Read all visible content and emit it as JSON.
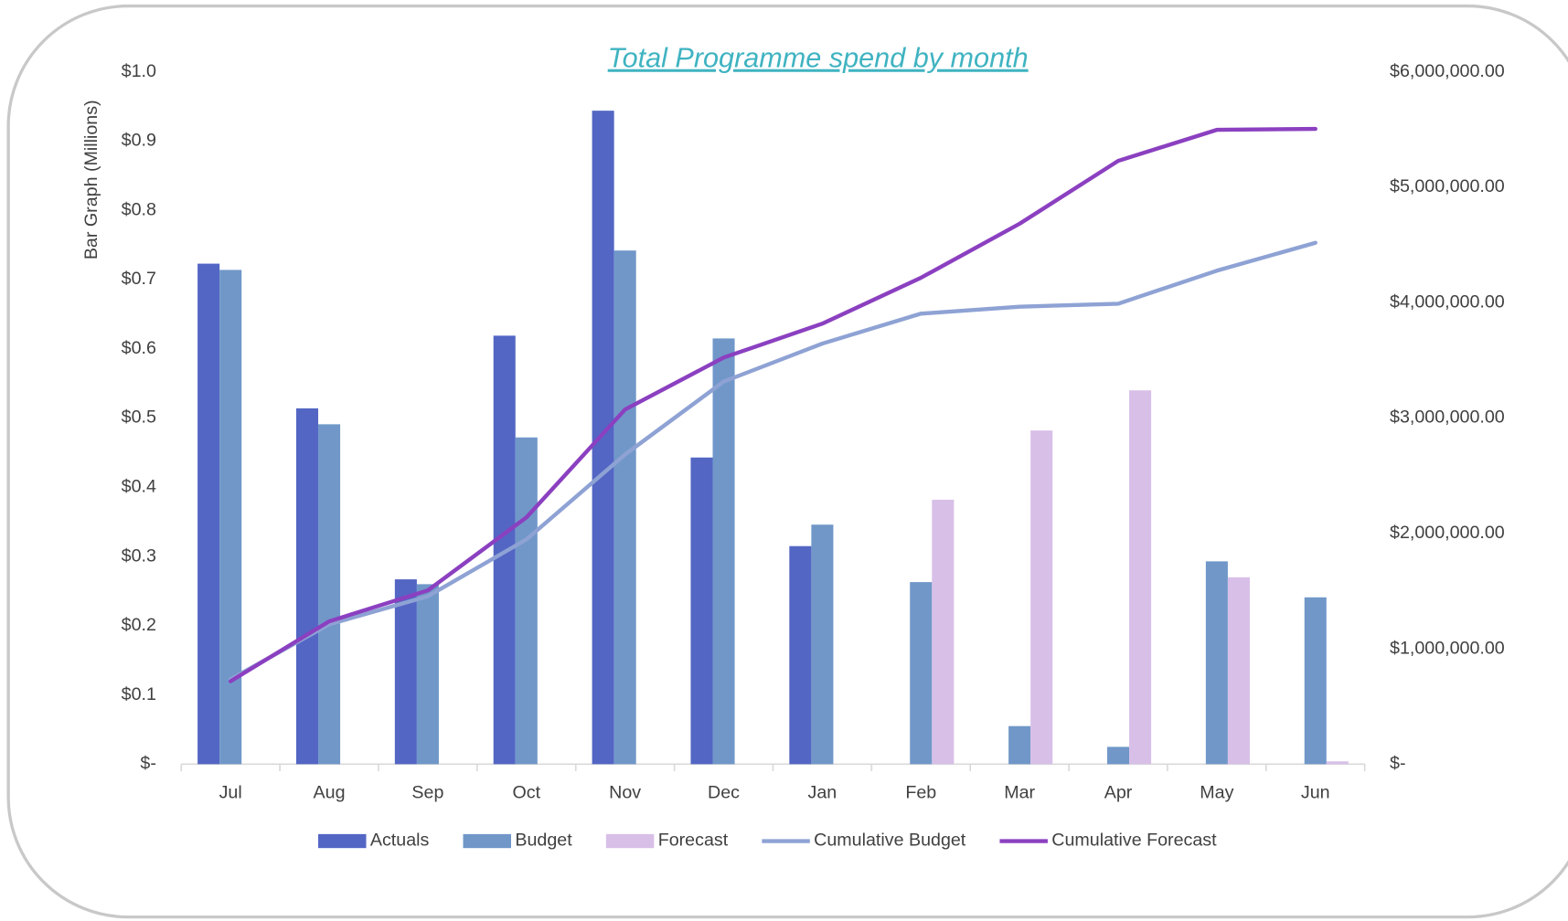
{
  "chart_data": {
    "type": "bar",
    "title": "Total Programme spend by month",
    "y_label": "Bar Graph (Millions)",
    "categories": [
      "Jul",
      "Aug",
      "Sep",
      "Oct",
      "Nov",
      "Dec",
      "Jan",
      "Feb",
      "Mar",
      "Apr",
      "May",
      "Jun"
    ],
    "series": [
      {
        "name": "Actuals",
        "type": "bar",
        "color": "#5366c4",
        "values": [
          0.723,
          0.514,
          0.267,
          0.619,
          0.944,
          0.443,
          0.315,
          null,
          null,
          null,
          null,
          null
        ]
      },
      {
        "name": "Budget",
        "type": "bar",
        "color": "#7097c8",
        "values": [
          0.714,
          0.491,
          0.26,
          0.472,
          0.742,
          0.615,
          0.346,
          0.263,
          0.055,
          0.025,
          0.293,
          0.241
        ]
      },
      {
        "name": "Forecast",
        "type": "bar",
        "color": "#d8bfe8",
        "values": [
          null,
          null,
          null,
          null,
          null,
          null,
          null,
          0.382,
          0.482,
          0.54,
          0.27,
          0.004
        ]
      },
      {
        "name": "Cumulative Budget",
        "type": "line",
        "axis": "y2",
        "color": "#8ea2d4",
        "values": [
          736000,
          1212000,
          1455000,
          1948000,
          2684000,
          3316000,
          3645000,
          3905000,
          3965000,
          3991000,
          4277000,
          4519000
        ]
      },
      {
        "name": "Cumulative Forecast",
        "type": "line",
        "axis": "y2",
        "color": "#8b40c0",
        "values": [
          719000,
          1238000,
          1506000,
          2139000,
          3074000,
          3524000,
          3818000,
          4216000,
          4684000,
          5229000,
          5498000,
          5506000
        ]
      }
    ],
    "ylim": [
      0,
      1.0
    ],
    "yticks": [
      {
        "value": 0,
        "label": "$-"
      },
      {
        "value": 0.1,
        "label": "$0.1"
      },
      {
        "value": 0.2,
        "label": "$0.2"
      },
      {
        "value": 0.3,
        "label": "$0.3"
      },
      {
        "value": 0.4,
        "label": "$0.4"
      },
      {
        "value": 0.5,
        "label": "$0.5"
      },
      {
        "value": 0.6,
        "label": "$0.6"
      },
      {
        "value": 0.7,
        "label": "$0.7"
      },
      {
        "value": 0.8,
        "label": "$0.8"
      },
      {
        "value": 0.9,
        "label": "$0.9"
      },
      {
        "value": 1.0,
        "label": "$1.0"
      }
    ],
    "y2lim": [
      0,
      6000000
    ],
    "y2ticks": [
      {
        "value": 0,
        "label": "$-"
      },
      {
        "value": 1000000,
        "label": "$1,000,000.00"
      },
      {
        "value": 2000000,
        "label": "$2,000,000.00"
      },
      {
        "value": 3000000,
        "label": "$3,000,000.00"
      },
      {
        "value": 4000000,
        "label": "$4,000,000.00"
      },
      {
        "value": 5000000,
        "label": "$5,000,000.00"
      },
      {
        "value": 6000000,
        "label": "$6,000,000.00"
      }
    ],
    "grid": false,
    "legend": "bottom"
  }
}
